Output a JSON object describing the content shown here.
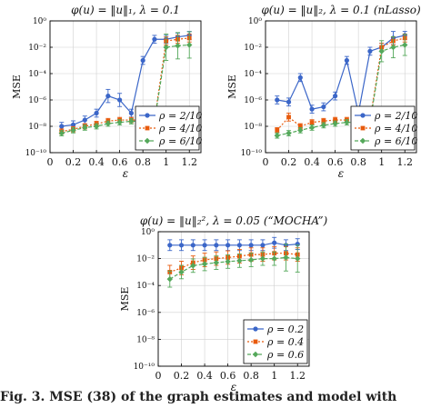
{
  "caption": "Fig. 3.   MSE (38) of the graph estimates and model with",
  "colors": {
    "rho_a": "#3b66c8",
    "rho_b": "#e85a0c",
    "rho_c": "#54a85a",
    "axis": "#000000",
    "grid": "#d0d0d0"
  },
  "chart_data": [
    {
      "type": "line",
      "title": "φ(u) = ‖u‖₁, λ = 0.1",
      "xlabel": "ε",
      "ylabel": "MSE",
      "yscale": "log",
      "xlim": [
        0,
        1.3
      ],
      "ylim": [
        1e-10,
        1
      ],
      "xticks": [
        "0",
        "0.2",
        "0.4",
        "0.6",
        "0.8",
        "1",
        "1.2"
      ],
      "yticks": [
        "10⁰",
        "10⁻²",
        "10⁻⁴",
        "10⁻⁶",
        "10⁻⁸",
        "10⁻¹⁰"
      ],
      "legend_position": "bottom-right",
      "grid": true,
      "x": [
        0.1,
        0.2,
        0.3,
        0.4,
        0.5,
        0.6,
        0.7,
        0.8,
        0.9,
        1.0,
        1.1,
        1.2
      ],
      "series": [
        {
          "name": "ρ = 2/10",
          "values": [
            1e-08,
            1.3e-08,
            3e-08,
            1e-07,
            2e-06,
            1e-06,
            1e-07,
            0.001,
            0.04,
            0.04,
            0.06,
            0.08
          ],
          "err": [
            0.3,
            0.3,
            0.3,
            0.3,
            0.5,
            0.5,
            0.3,
            0.3,
            0.3,
            0.3,
            0.3,
            0.3
          ]
        },
        {
          "name": "ρ = 4/10",
          "values": [
            4e-09,
            6e-09,
            1e-08,
            1.5e-08,
            2.5e-08,
            3e-08,
            3e-08,
            3e-08,
            3e-08,
            0.03,
            0.04,
            0.05
          ],
          "err": [
            0.2,
            0.2,
            0.2,
            0.2,
            0.2,
            0.2,
            0.2,
            0.2,
            0.2,
            0.3,
            0.3,
            0.3
          ]
        },
        {
          "name": "ρ = 6/10",
          "values": [
            3e-09,
            5e-09,
            8e-09,
            1e-08,
            1.6e-08,
            2e-08,
            2.4e-08,
            2.5e-08,
            2.5e-08,
            0.01,
            0.013,
            0.015
          ],
          "err": [
            0.2,
            0.2,
            0.2,
            0.2,
            0.2,
            0.2,
            0.2,
            0.2,
            0.2,
            1.0,
            1.0,
            1.0
          ]
        }
      ]
    },
    {
      "type": "line",
      "title": "φ(u) = ‖u‖₂, λ = 0.1 (nLasso)",
      "xlabel": "ε",
      "ylabel": "MSE",
      "yscale": "log",
      "xlim": [
        0,
        1.3
      ],
      "ylim": [
        1e-10,
        1
      ],
      "xticks": [
        "0",
        "0.2",
        "0.4",
        "0.6",
        "0.8",
        "1",
        "1.2"
      ],
      "yticks": [
        "10⁰",
        "10⁻²",
        "10⁻⁴",
        "10⁻⁶",
        "10⁻⁸",
        "10⁻¹⁰"
      ],
      "legend_position": "bottom-right",
      "grid": true,
      "x": [
        0.1,
        0.2,
        0.3,
        0.4,
        0.5,
        0.6,
        0.7,
        0.8,
        0.9,
        1.0,
        1.1,
        1.2
      ],
      "series": [
        {
          "name": "ρ = 2/10",
          "values": [
            1e-06,
            7e-07,
            5e-05,
            2e-07,
            3e-07,
            2e-06,
            0.001,
            1e-07,
            0.005,
            0.01,
            0.05,
            0.08
          ],
          "err": [
            0.3,
            0.3,
            0.3,
            0.3,
            0.3,
            0.3,
            0.3,
            0.3,
            0.3,
            0.3,
            0.5,
            0.3
          ]
        },
        {
          "name": "ρ = 4/10",
          "values": [
            5e-09,
            5e-08,
            1e-08,
            2e-08,
            2.5e-08,
            3e-08,
            3e-08,
            3e-08,
            3e-08,
            0.01,
            0.03,
            0.05
          ],
          "err": [
            0.2,
            0.3,
            0.2,
            0.2,
            0.2,
            0.2,
            0.2,
            0.2,
            0.2,
            0.3,
            0.3,
            0.3
          ]
        },
        {
          "name": "ρ = 6/10",
          "values": [
            2e-09,
            3e-09,
            5e-09,
            8e-09,
            1.2e-08,
            1.6e-08,
            2e-08,
            2e-08,
            2e-08,
            0.005,
            0.01,
            0.015
          ],
          "err": [
            0.2,
            0.2,
            0.2,
            0.2,
            0.2,
            0.2,
            0.2,
            0.2,
            0.2,
            0.8,
            0.8,
            0.8
          ]
        }
      ]
    },
    {
      "type": "line",
      "title": "φ(u) = ‖u‖₂², λ = 0.05 (“MOCHA”)",
      "xlabel": "ε",
      "ylabel": "MSE",
      "yscale": "log",
      "xlim": [
        0,
        1.3
      ],
      "ylim": [
        1e-10,
        1
      ],
      "xticks": [
        "0",
        "0.2",
        "0.4",
        "0.6",
        "0.8",
        "1",
        "1.2"
      ],
      "yticks": [
        "10⁰",
        "10⁻²",
        "10⁻⁴",
        "10⁻⁶",
        "10⁻⁸",
        "10⁻¹⁰"
      ],
      "legend_position": "bottom-right",
      "grid": true,
      "x": [
        0.1,
        0.2,
        0.3,
        0.4,
        0.5,
        0.6,
        0.7,
        0.8,
        0.9,
        1.0,
        1.1,
        1.2
      ],
      "series": [
        {
          "name": "ρ = 0.2",
          "values": [
            0.1,
            0.1,
            0.1,
            0.1,
            0.1,
            0.1,
            0.1,
            0.1,
            0.1,
            0.15,
            0.1,
            0.12
          ],
          "err": [
            0.4,
            0.4,
            0.4,
            0.4,
            0.4,
            0.4,
            0.4,
            0.4,
            0.4,
            0.4,
            0.4,
            0.4
          ]
        },
        {
          "name": "ρ = 0.4",
          "values": [
            0.001,
            0.002,
            0.005,
            0.008,
            0.01,
            0.012,
            0.015,
            0.02,
            0.02,
            0.025,
            0.025,
            0.02
          ],
          "err": [
            0.5,
            0.5,
            0.5,
            0.5,
            0.5,
            0.5,
            0.5,
            0.5,
            0.5,
            0.5,
            0.5,
            0.5
          ]
        },
        {
          "name": "ρ = 0.6",
          "values": [
            0.0003,
            0.001,
            0.003,
            0.004,
            0.005,
            0.006,
            0.007,
            0.008,
            0.01,
            0.01,
            0.012,
            0.01
          ],
          "err": [
            0.6,
            0.5,
            0.5,
            0.5,
            0.5,
            0.5,
            0.5,
            0.5,
            0.5,
            0.5,
            1.0,
            1.0
          ]
        }
      ]
    }
  ]
}
